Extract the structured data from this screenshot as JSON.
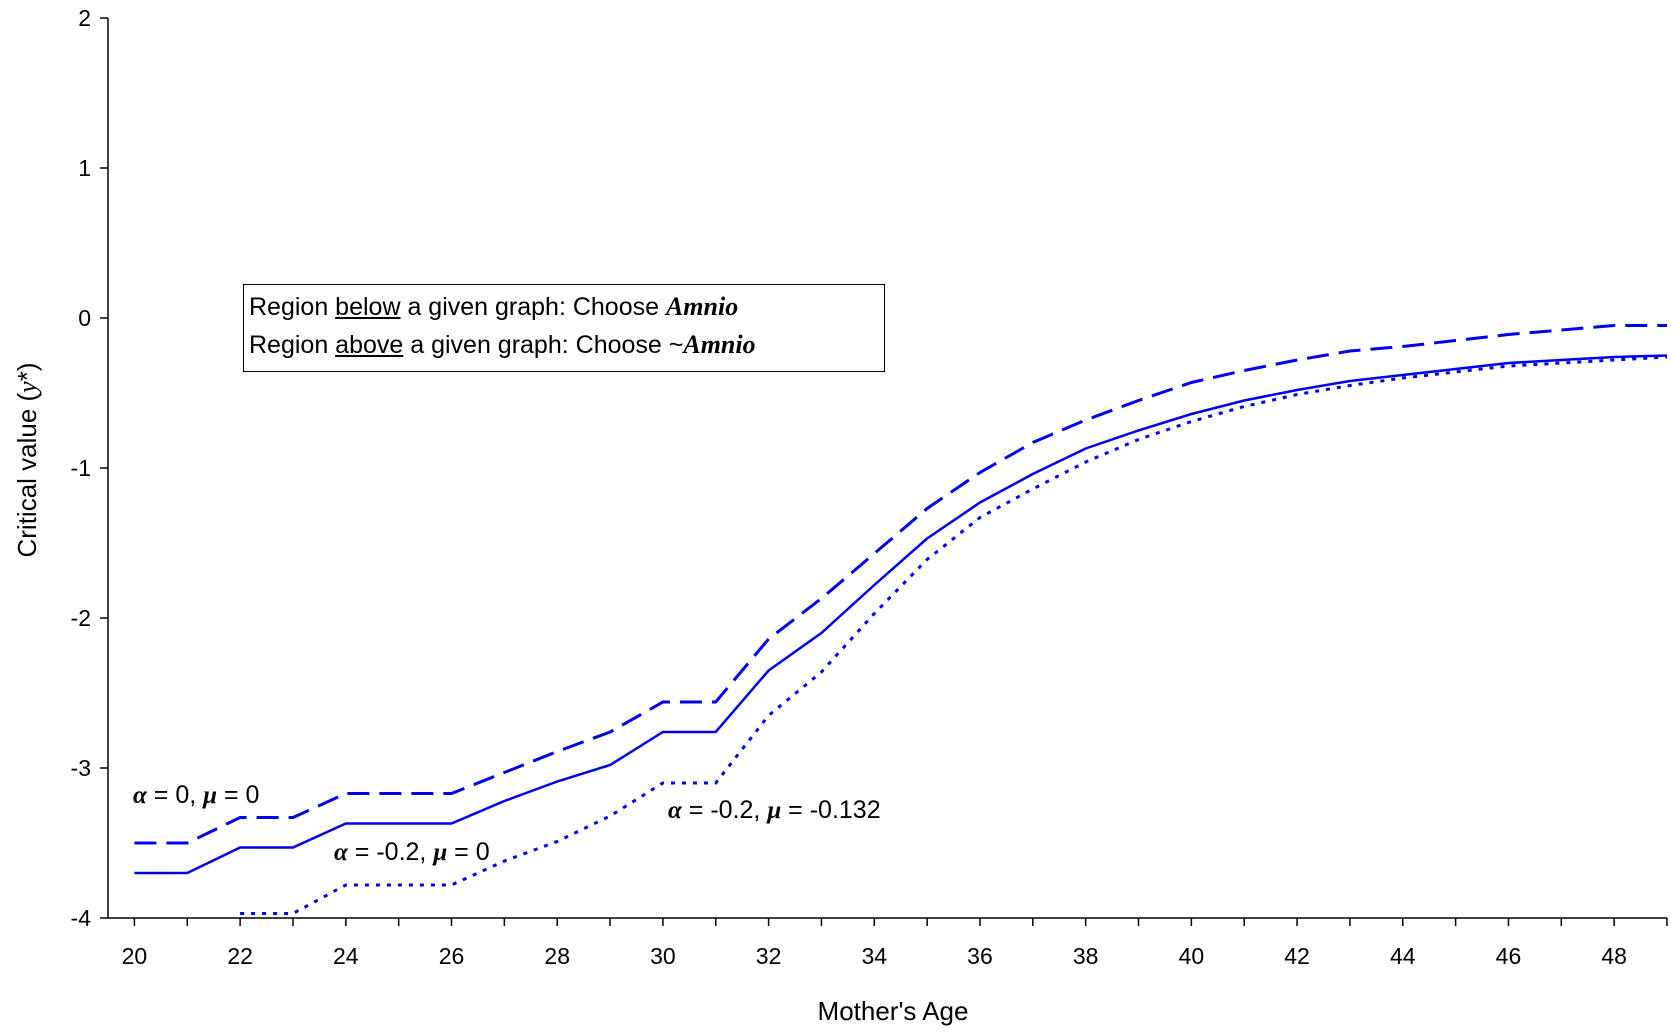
{
  "chart_data": {
    "type": "line",
    "xlabel": "Mother's Age",
    "ylabel_text": "Critical value (",
    "ylabel_symbol": "y",
    "ylabel_suffix": "*)",
    "xlim": [
      19.5,
      49
    ],
    "ylim": [
      -4,
      2
    ],
    "x_ticks": [
      20,
      22,
      24,
      26,
      28,
      30,
      32,
      34,
      36,
      38,
      40,
      42,
      44,
      46,
      48
    ],
    "y_ticks": [
      2,
      1,
      0,
      -1,
      -2,
      -3,
      -4
    ],
    "grid": false,
    "color": "#0000ee",
    "series": [
      {
        "name": "α = 0, μ = 0",
        "style": "dashed",
        "x": [
          20,
          21,
          22,
          23,
          24,
          25,
          26,
          27,
          28,
          29,
          30,
          31,
          32,
          33,
          34,
          35,
          36,
          37,
          38,
          39,
          40,
          41,
          42,
          43,
          44,
          45,
          46,
          47,
          48,
          49
        ],
        "y": [
          -3.5,
          -3.5,
          -3.33,
          -3.33,
          -3.17,
          -3.17,
          -3.17,
          -3.03,
          -2.89,
          -2.76,
          -2.56,
          -2.56,
          -2.14,
          -1.87,
          -1.57,
          -1.27,
          -1.03,
          -0.83,
          -0.68,
          -0.55,
          -0.43,
          -0.35,
          -0.28,
          -0.22,
          -0.19,
          -0.15,
          -0.11,
          -0.08,
          -0.05,
          -0.05
        ]
      },
      {
        "name": "α = -0.2, μ = 0",
        "style": "solid",
        "x": [
          20,
          21,
          22,
          23,
          24,
          25,
          26,
          27,
          28,
          29,
          30,
          31,
          32,
          33,
          34,
          35,
          36,
          37,
          38,
          39,
          40,
          41,
          42,
          43,
          44,
          45,
          46,
          47,
          48,
          49
        ],
        "y": [
          -3.7,
          -3.7,
          -3.53,
          -3.53,
          -3.37,
          -3.37,
          -3.37,
          -3.22,
          -3.09,
          -2.98,
          -2.76,
          -2.76,
          -2.35,
          -2.1,
          -1.78,
          -1.47,
          -1.23,
          -1.04,
          -0.87,
          -0.75,
          -0.64,
          -0.55,
          -0.48,
          -0.42,
          -0.38,
          -0.34,
          -0.3,
          -0.28,
          -0.26,
          -0.25
        ]
      },
      {
        "name": "α = -0.2, μ = -0.132",
        "style": "dotted",
        "x": [
          22,
          23,
          24,
          25,
          26,
          27,
          28,
          29,
          30,
          31,
          32,
          33,
          34,
          35,
          36,
          37,
          38,
          39,
          40,
          41,
          42,
          43,
          44,
          45,
          46,
          47,
          48,
          49
        ],
        "y": [
          -3.97,
          -3.97,
          -3.78,
          -3.78,
          -3.78,
          -3.62,
          -3.49,
          -3.32,
          -3.1,
          -3.1,
          -2.65,
          -2.36,
          -1.97,
          -1.61,
          -1.33,
          -1.14,
          -0.96,
          -0.81,
          -0.69,
          -0.59,
          -0.51,
          -0.45,
          -0.4,
          -0.36,
          -0.32,
          -0.3,
          -0.28,
          -0.26
        ]
      }
    ],
    "annotations": [
      {
        "greek1": "α",
        "text1": " = 0, ",
        "greek2": "μ",
        "text2": " = 0"
      },
      {
        "greek1": "α",
        "text1": " = -0.2, ",
        "greek2": "μ",
        "text2": " = 0"
      },
      {
        "greek1": "α",
        "text1": " = -0.2, ",
        "greek2": "μ",
        "text2": " = -0.132"
      }
    ],
    "legend_box": {
      "line1_a": "Region ",
      "line1_u": "below",
      "line1_b": " a given graph: Choose ",
      "line1_em": "Amnio",
      "line2_a": "Region ",
      "line2_u": "above",
      "line2_b": " a given graph: Choose ~",
      "line2_em": "Amnio",
      "placement": "upper-left"
    }
  }
}
